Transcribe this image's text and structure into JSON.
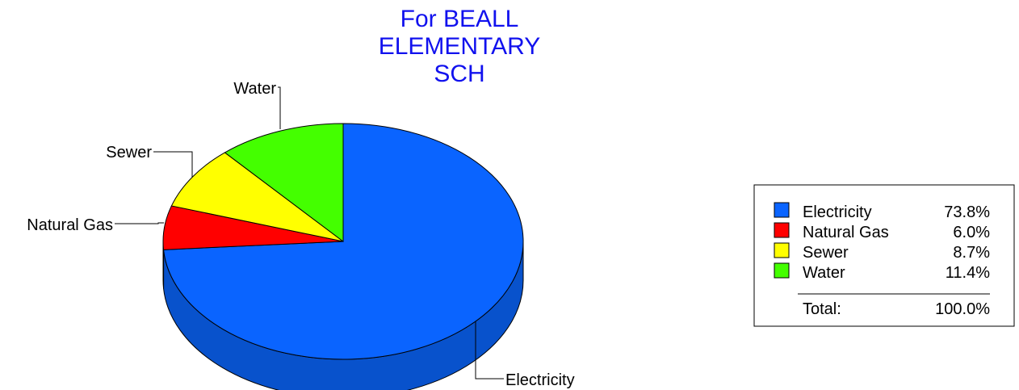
{
  "chart_data": {
    "type": "pie",
    "title_lines": [
      "For BEALL",
      "ELEMENTARY",
      "SCH"
    ],
    "title_color": "#1111ee",
    "slices": [
      {
        "label": "Electricity",
        "value": 73.8,
        "value_label": "73.8%",
        "color": "#0a64ff",
        "side_color": "#0852cc"
      },
      {
        "label": "Natural Gas",
        "value": 6.0,
        "value_label": "6.0%",
        "color": "#ff0000",
        "side_color": "#c40000"
      },
      {
        "label": "Sewer",
        "value": 8.7,
        "value_label": "8.7%",
        "color": "#ffff00",
        "side_color": "#c8c800"
      },
      {
        "label": "Water",
        "value": 11.4,
        "value_label": "11.4%",
        "color": "#44ff00",
        "side_color": "#2fbf00"
      }
    ],
    "total": {
      "label": "Total:",
      "value": 100.0,
      "value_label": "100.0%"
    },
    "legend_position": "right"
  }
}
